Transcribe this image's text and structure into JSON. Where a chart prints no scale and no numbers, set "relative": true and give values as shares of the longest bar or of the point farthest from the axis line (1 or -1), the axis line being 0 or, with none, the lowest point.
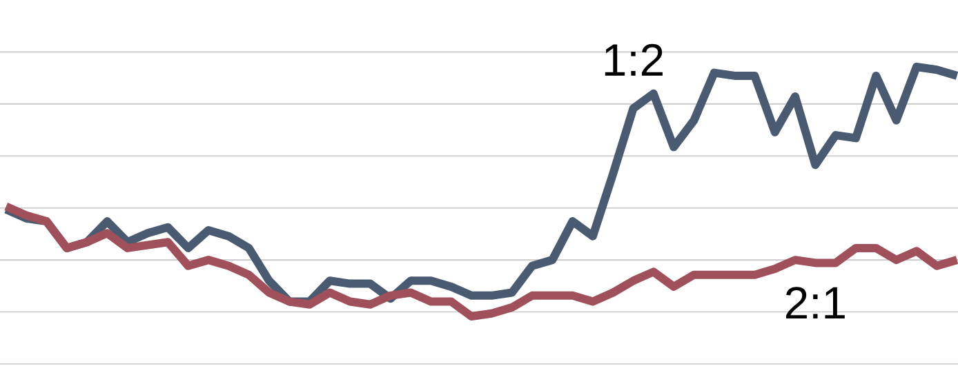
{
  "chart_data": {
    "type": "line",
    "relative": true,
    "grid": "y",
    "line_style": "solid",
    "marker": "none",
    "categories": [
      null,
      null,
      null,
      null,
      null,
      null,
      null,
      null,
      null,
      null,
      null,
      null,
      null,
      null,
      null,
      null,
      null,
      null,
      null,
      null,
      null,
      null,
      null,
      null,
      null,
      null,
      null,
      null,
      null,
      null,
      null,
      null,
      null,
      null,
      null,
      null,
      null,
      null,
      null,
      null,
      null,
      null,
      null,
      null,
      null,
      null,
      null,
      null
    ],
    "series": [
      {
        "name": "1:2",
        "color": "#4a5a70",
        "values": [
          0.52,
          0.49,
          0.48,
          0.39,
          0.41,
          0.48,
          0.41,
          0.44,
          0.46,
          0.39,
          0.45,
          0.43,
          0.39,
          0.28,
          0.21,
          0.21,
          0.28,
          0.27,
          0.27,
          0.22,
          0.28,
          0.28,
          0.26,
          0.23,
          0.23,
          0.24,
          0.33,
          0.35,
          0.48,
          0.43,
          0.64,
          0.86,
          0.91,
          0.73,
          0.82,
          0.98,
          0.97,
          0.97,
          0.78,
          0.9,
          0.67,
          0.77,
          0.76,
          0.97,
          0.82,
          1,
          0.99,
          0.97
        ]
      },
      {
        "name": "2:1",
        "color": "#a0505a",
        "values": [
          0.53,
          0.5,
          0.48,
          0.39,
          0.41,
          0.44,
          0.39,
          0.4,
          0.41,
          0.33,
          0.35,
          0.33,
          0.3,
          0.24,
          0.21,
          0.2,
          0.24,
          0.21,
          0.2,
          0.23,
          0.24,
          0.21,
          0.21,
          0.16,
          0.17,
          0.19,
          0.23,
          0.23,
          0.23,
          0.21,
          0.24,
          0.28,
          0.31,
          0.26,
          0.3,
          0.3,
          0.3,
          0.3,
          0.32,
          0.35,
          0.34,
          0.34,
          0.39,
          0.39,
          0.35,
          0.38,
          0.33,
          0.35
        ]
      }
    ]
  }
}
